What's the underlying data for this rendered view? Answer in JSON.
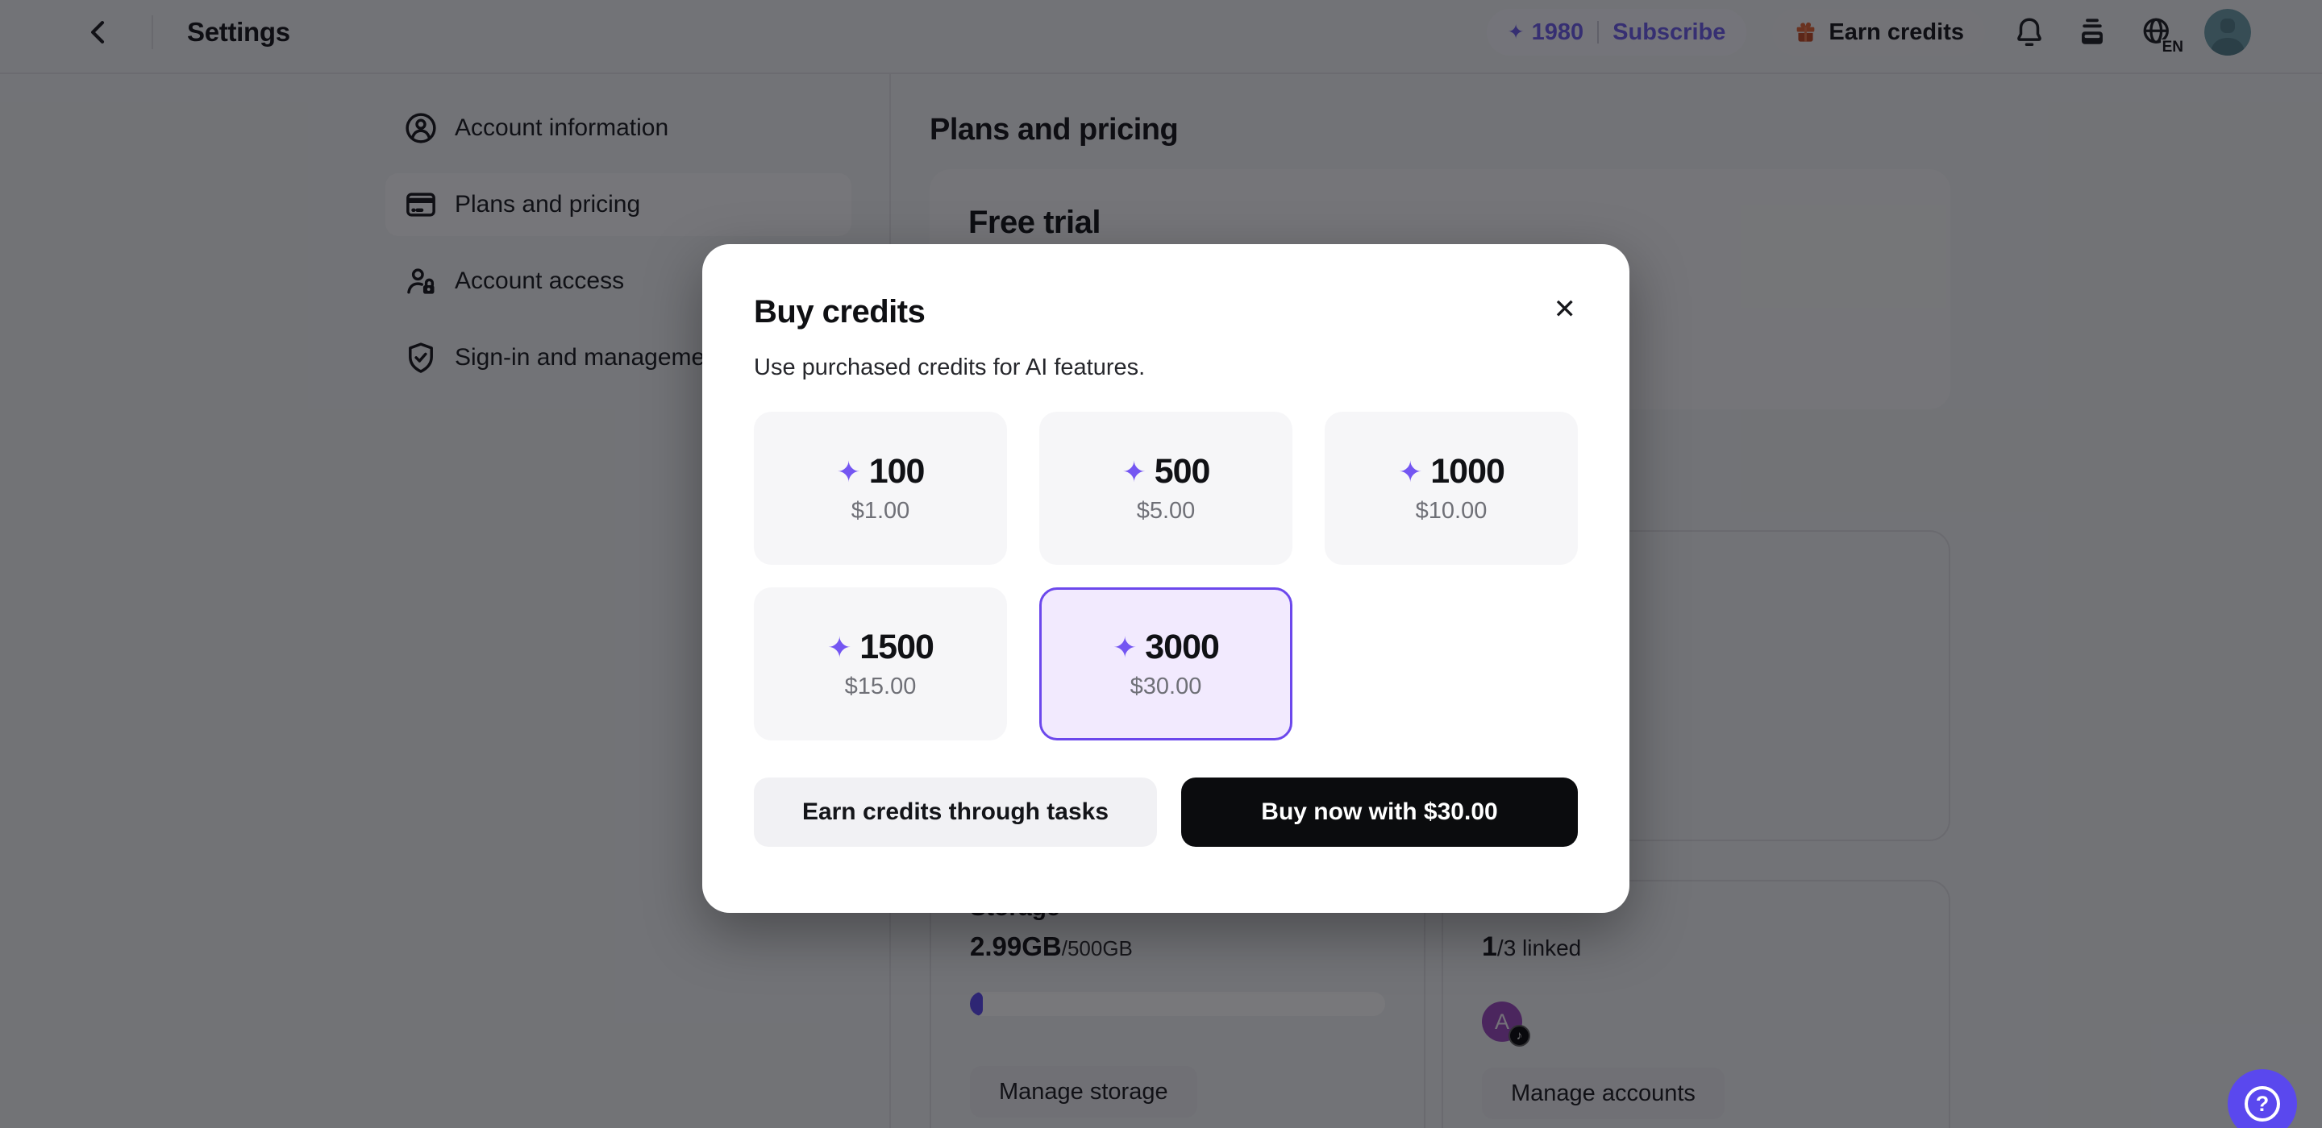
{
  "topbar": {
    "title": "Settings",
    "credits_balance": "1980",
    "subscribe_label": "Subscribe",
    "earn_credits_label": "Earn credits",
    "language": "EN"
  },
  "sidebar": {
    "items": [
      {
        "label": "Account information"
      },
      {
        "label": "Plans and pricing"
      },
      {
        "label": "Account access"
      },
      {
        "label": "Sign-in and management"
      }
    ]
  },
  "main": {
    "heading": "Plans and pricing",
    "free_trial_title": "Free trial",
    "storage_card": {
      "heading": "Storage",
      "used": "2.99GB",
      "total": "/500GB",
      "progress_percent": 1,
      "manage_label": "Manage storage"
    },
    "accounts_card": {
      "linked_count": "1",
      "linked_suffix": "/3 linked",
      "avatar_letter": "A",
      "manage_label": "Manage accounts"
    }
  },
  "modal": {
    "title": "Buy credits",
    "subtitle": "Use purchased credits for AI features.",
    "options": [
      {
        "credits": "100",
        "price": "$1.00",
        "selected": false
      },
      {
        "credits": "500",
        "price": "$5.00",
        "selected": false
      },
      {
        "credits": "1000",
        "price": "$10.00",
        "selected": false
      },
      {
        "credits": "1500",
        "price": "$15.00",
        "selected": false
      },
      {
        "credits": "3000",
        "price": "$30.00",
        "selected": true
      }
    ],
    "earn_button_label": "Earn credits through tasks",
    "buy_button_label": "Buy now with $30.00"
  },
  "icons": {
    "sparkle": "✦",
    "close": "✕",
    "music_note": "♪",
    "help": "?"
  },
  "colors": {
    "accent_purple": "#6C48EC",
    "brand_purple_text": "#6E5DEB",
    "selected_card_bg": "#F2EAFE",
    "progress_fill": "#5B49EF",
    "help_button": "#5A48EE",
    "gift_orange": "#E06537",
    "avatar_teal": "#6F9FAC",
    "linked_avatar_purple": "#9C4BBE",
    "buy_button_bg": "#0B0C0E"
  }
}
